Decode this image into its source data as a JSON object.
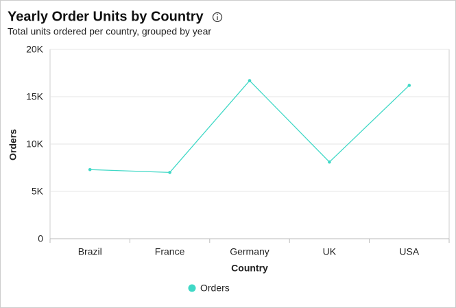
{
  "chart_data": {
    "type": "line",
    "title": "Yearly Order Units by Country",
    "subtitle": "Total units ordered per country, grouped by year",
    "x_label": "Country",
    "y_label": "Orders",
    "categories": [
      "Brazil",
      "France",
      "Germany",
      "UK",
      "USA"
    ],
    "series": [
      {
        "name": "Orders",
        "color": "#3fd8c6",
        "values": [
          7300,
          7000,
          16700,
          8100,
          16200
        ]
      }
    ],
    "ylim": [
      0,
      20000
    ],
    "yticks": [
      0,
      {
        "value": 5000,
        "label": "5K"
      },
      {
        "value": 10000,
        "label": "10K"
      },
      {
        "value": 15000,
        "label": "15K"
      },
      {
        "value": 20000,
        "label": "20K"
      }
    ],
    "grid": true,
    "legend": "bottom"
  }
}
